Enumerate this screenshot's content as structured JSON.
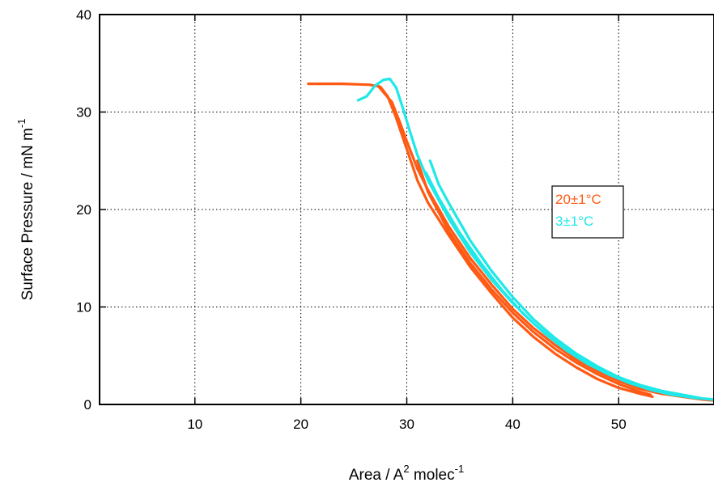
{
  "chart_data": {
    "type": "line",
    "xlabel": {
      "base": "Area / A",
      "sup1": "2",
      "mid": " molec",
      "sup2": "-1"
    },
    "ylabel": {
      "base": "Surface Pressure / mN m",
      "sup": "-1"
    },
    "xlim": [
      1,
      59
    ],
    "ylim": [
      0,
      40
    ],
    "x_ticks": [
      10,
      20,
      30,
      40,
      50
    ],
    "y_ticks": [
      0,
      10,
      20,
      30,
      40
    ],
    "grid": true,
    "legend_position": "right",
    "series": [
      {
        "name": "20±1°C",
        "color": "#ff5a14",
        "curves": [
          [
            [
              20.7,
              32.9
            ],
            [
              24,
              32.9
            ],
            [
              26.5,
              32.8
            ],
            [
              27.5,
              32.6
            ],
            [
              28.2,
              31.6
            ],
            [
              29,
              29.4
            ],
            [
              30,
              26.2
            ],
            [
              31,
              23.0
            ],
            [
              32,
              20.7
            ],
            [
              34,
              17.3
            ],
            [
              36,
              14.1
            ],
            [
              38,
              11.4
            ],
            [
              40,
              8.9
            ],
            [
              42,
              6.9
            ],
            [
              44,
              5.2
            ],
            [
              46,
              3.8
            ],
            [
              48,
              2.6
            ],
            [
              50,
              1.7
            ],
            [
              52,
              1.1
            ],
            [
              53.2,
              0.8
            ]
          ],
          [
            [
              27.2,
              32.8
            ],
            [
              28.6,
              31.0
            ],
            [
              29.4,
              28.8
            ],
            [
              30,
              27.0
            ],
            [
              31,
              24.2
            ],
            [
              32,
              22.0
            ],
            [
              34,
              18.2
            ],
            [
              36,
              15.0
            ],
            [
              38,
              12.3
            ],
            [
              40,
              9.8
            ],
            [
              42,
              7.8
            ],
            [
              44,
              6.1
            ],
            [
              46,
              4.6
            ],
            [
              48,
              3.4
            ],
            [
              50,
              2.4
            ],
            [
              52,
              1.6
            ],
            [
              54,
              1.1
            ],
            [
              56,
              0.8
            ],
            [
              58,
              0.5
            ],
            [
              59,
              0.4
            ]
          ],
          [
            [
              31.0,
              25.0
            ],
            [
              32,
              21.8
            ],
            [
              34,
              17.7
            ],
            [
              36,
              14.5
            ],
            [
              38,
              11.8
            ],
            [
              40,
              9.4
            ],
            [
              42,
              7.4
            ],
            [
              44,
              5.7
            ],
            [
              46,
              4.3
            ],
            [
              48,
              3.1
            ],
            [
              50,
              2.1
            ],
            [
              52,
              1.3
            ],
            [
              53,
              1.0
            ]
          ]
        ]
      },
      {
        "name": "3±1°C",
        "color": "#1ee8e8",
        "curves": [
          [
            [
              25.4,
              31.2
            ],
            [
              26.2,
              31.6
            ],
            [
              27,
              32.7
            ],
            [
              27.8,
              33.3
            ],
            [
              28.4,
              33.4
            ],
            [
              29,
              32.5
            ],
            [
              29.6,
              30.5
            ],
            [
              30.3,
              28.0
            ],
            [
              31,
              25.6
            ],
            [
              32,
              23.0
            ],
            [
              34,
              19.0
            ],
            [
              36,
              15.6
            ],
            [
              38,
              12.8
            ],
            [
              40,
              10.4
            ],
            [
              42,
              8.3
            ],
            [
              44,
              6.5
            ],
            [
              46,
              5.0
            ],
            [
              48,
              3.8
            ],
            [
              50,
              2.8
            ],
            [
              52,
              2.0
            ],
            [
              54,
              1.4
            ],
            [
              56,
              1.0
            ],
            [
              58,
              0.6
            ],
            [
              59,
              0.5
            ]
          ],
          [
            [
              32.2,
              25.0
            ],
            [
              33,
              22.6
            ],
            [
              34,
              20.6
            ],
            [
              36,
              16.8
            ],
            [
              38,
              13.7
            ],
            [
              40,
              11.0
            ],
            [
              42,
              8.7
            ],
            [
              44,
              6.8
            ],
            [
              46,
              5.2
            ],
            [
              48,
              3.9
            ],
            [
              50,
              2.8
            ],
            [
              52,
              1.9
            ],
            [
              54,
              1.3
            ],
            [
              56,
              0.9
            ],
            [
              58,
              0.6
            ],
            [
              59,
              0.5
            ]
          ],
          [
            [
              31.8,
              23.8
            ],
            [
              33,
              21.2
            ],
            [
              35,
              17.6
            ],
            [
              37,
              14.5
            ],
            [
              39,
              11.7
            ],
            [
              41,
              9.3
            ],
            [
              43,
              7.3
            ],
            [
              45,
              5.6
            ],
            [
              47,
              4.2
            ],
            [
              49,
              3.1
            ],
            [
              51,
              2.2
            ],
            [
              53,
              1.5
            ],
            [
              55,
              1.0
            ],
            [
              57,
              0.7
            ],
            [
              59,
              0.5
            ]
          ]
        ]
      }
    ]
  }
}
